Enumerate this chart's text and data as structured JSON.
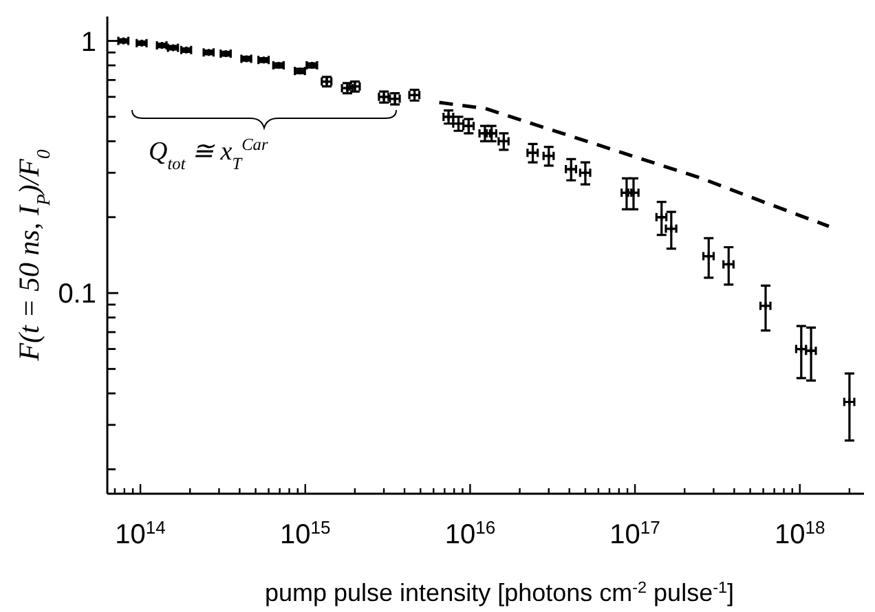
{
  "chart_data": {
    "type": "scatter",
    "xlabel": "pump pulse intensity [photons cm$^{-2}$ pulse$^{-1}$]",
    "ylabel": "F(t = 50 ns, I$_{P}$)/F$_{0}$",
    "log": "xy",
    "grid": false,
    "annotations": [
      "Q$_{tot}$ ≅  x$_{T}$$^{Car}$"
    ],
    "xlim": [
      63000000000000.0,
      2.45e+18
    ],
    "ylim": [
      0.016,
      1.25
    ],
    "xticks": [
      {
        "value": 70000000000000.0,
        "label": null
      },
      {
        "value": 80000000000000.0,
        "label": null
      },
      {
        "value": 90000000000000.0,
        "label": null
      },
      {
        "value": 100000000000000.0,
        "label": "10$^{14}$"
      },
      {
        "value": 200000000000000.0,
        "label": null
      },
      {
        "value": 300000000000000.0,
        "label": null
      },
      {
        "value": 400000000000000.0,
        "label": null
      },
      {
        "value": 500000000000000.0,
        "label": null
      },
      {
        "value": 600000000000000.0,
        "label": null
      },
      {
        "value": 700000000000000.0,
        "label": null
      },
      {
        "value": 800000000000000.0,
        "label": null
      },
      {
        "value": 900000000000000.0,
        "label": null
      },
      {
        "value": 1000000000000000.0,
        "label": "10$^{15}$"
      },
      {
        "value": 2000000000000000.0,
        "label": null
      },
      {
        "value": 3000000000000000.0,
        "label": null
      },
      {
        "value": 4000000000000000.0,
        "label": null
      },
      {
        "value": 5000000000000000.0,
        "label": null
      },
      {
        "value": 6000000000000000.0,
        "label": null
      },
      {
        "value": 7000000000000000.0,
        "label": null
      },
      {
        "value": 8000000000000000.0,
        "label": null
      },
      {
        "value": 9000000000000000.0,
        "label": null
      },
      {
        "value": 1e+16,
        "label": "10$^{16}$"
      },
      {
        "value": 2e+16,
        "label": null
      },
      {
        "value": 3e+16,
        "label": null
      },
      {
        "value": 4e+16,
        "label": null
      },
      {
        "value": 5e+16,
        "label": null
      },
      {
        "value": 6e+16,
        "label": null
      },
      {
        "value": 7e+16,
        "label": null
      },
      {
        "value": 8e+16,
        "label": null
      },
      {
        "value": 9e+16,
        "label": null
      },
      {
        "value": 1e+17,
        "label": "10$^{17}$"
      },
      {
        "value": 2e+17,
        "label": null
      },
      {
        "value": 3e+17,
        "label": null
      },
      {
        "value": 4e+17,
        "label": null
      },
      {
        "value": 5e+17,
        "label": null
      },
      {
        "value": 6e+17,
        "label": null
      },
      {
        "value": 7e+17,
        "label": null
      },
      {
        "value": 8e+17,
        "label": null
      },
      {
        "value": 9e+17,
        "label": null
      },
      {
        "value": 1e+18,
        "label": "10$^{18}$"
      },
      {
        "value": 2e+18,
        "label": null
      }
    ],
    "yticks": [
      {
        "value": 0.02,
        "label": null
      },
      {
        "value": 0.03,
        "label": null
      },
      {
        "value": 0.04,
        "label": null
      },
      {
        "value": 0.05,
        "label": null
      },
      {
        "value": 0.06,
        "label": null
      },
      {
        "value": 0.07,
        "label": null
      },
      {
        "value": 0.08,
        "label": null
      },
      {
        "value": 0.09,
        "label": null
      },
      0.1,
      {
        "value": 0.2,
        "label": null
      },
      {
        "value": 0.3,
        "label": null
      },
      {
        "value": 0.4,
        "label": null
      },
      {
        "value": 0.5,
        "label": null
      },
      {
        "value": 0.6,
        "label": null
      },
      {
        "value": 0.7,
        "label": null
      },
      {
        "value": 0.8,
        "label": null
      },
      {
        "value": 0.9,
        "label": null
      },
      1
    ],
    "series": [
      {
        "type": "scatter",
        "color": "#000000",
        "marker": "cross",
        "x": [
          79000000000000.0,
          102000000000000.0,
          135000000000000.0,
          158000000000000.0,
          190000000000000.0,
          260000000000000.0,
          330000000000000.0,
          440000000000000.0,
          560000000000000.0,
          690000000000000.0,
          930000000000000.0,
          1100000000000000.0,
          1350000000000000.0,
          1800000000000000.0,
          2000000000000000.0,
          3000000000000000.0,
          3500000000000000.0,
          4600000000000000.0,
          7400000000000000.0,
          8500000000000000.0,
          9800000000000000.0,
          1.23e+16,
          1.35e+16,
          1.6e+16,
          2.4e+16,
          3e+16,
          4.1e+16,
          5e+16,
          8.9e+16,
          9.8e+16,
          1.45e+17,
          1.66e+17,
          2.8e+17,
          3.7e+17,
          6.2e+17,
          1.02e+18,
          1.17e+18,
          2e+18
        ],
        "values": [
          1.0,
          0.98,
          0.96,
          0.94,
          0.92,
          0.9,
          0.89,
          0.85,
          0.84,
          0.8,
          0.76,
          0.8,
          0.69,
          0.65,
          0.66,
          0.6,
          0.59,
          0.61,
          0.5,
          0.47,
          0.46,
          0.43,
          0.43,
          0.4,
          0.36,
          0.35,
          0.31,
          0.3,
          0.25,
          0.25,
          0.2,
          0.18,
          0.14,
          0.13,
          0.089,
          0.06,
          0.059,
          0.037
        ],
        "errors": [
          0.015,
          0.015,
          0.015,
          0.015,
          0.015,
          0.015,
          0.015,
          0.015,
          0.015,
          0.015,
          0.015,
          0.015,
          0.03,
          0.03,
          0.03,
          0.03,
          0.03,
          0.03,
          0.03,
          0.03,
          0.03,
          0.03,
          0.03,
          0.03,
          0.03,
          0.03,
          0.03,
          0.03,
          0.035,
          0.035,
          0.03,
          0.03,
          0.025,
          0.022,
          0.018,
          0.014,
          0.014,
          0.011
        ],
        "xerrors": [
          5500000000000.0,
          7000000000000.0,
          9000000000000.0,
          11000000000000.0,
          13000000000000.0,
          18000000000000.0,
          23000000000000.0,
          30000000000000.0,
          40000000000000.0,
          50000000000000.0,
          65000000000000.0,
          80000000000000.0,
          90000000000000.0,
          130000000000000.0,
          140000000000000.0,
          200000000000000.0,
          240000000000000.0,
          320000000000000.0,
          500000000000000.0,
          600000000000000.0,
          700000000000000.0,
          900000000000000.0,
          900000000000000.0,
          1100000000000000.0,
          1700000000000000.0,
          2100000000000000.0,
          2900000000000000.0,
          3500000000000000.0,
          6000000000000000.0,
          7000000000000000.0,
          1e+16,
          1.2e+16,
          2e+16,
          2.6e+16,
          4.3e+16,
          7e+16,
          8e+16,
          1.4e+17
        ]
      },
      {
        "type": "line",
        "color": "#000000",
        "line_style": "dashed",
        "x": [
          6500000000000000.0,
          1.23e+16,
          2.5e+17,
          6e+17,
          1.5e+18
        ],
        "values": [
          0.57,
          0.54,
          0.286,
          0.23,
          0.184
        ]
      }
    ]
  }
}
